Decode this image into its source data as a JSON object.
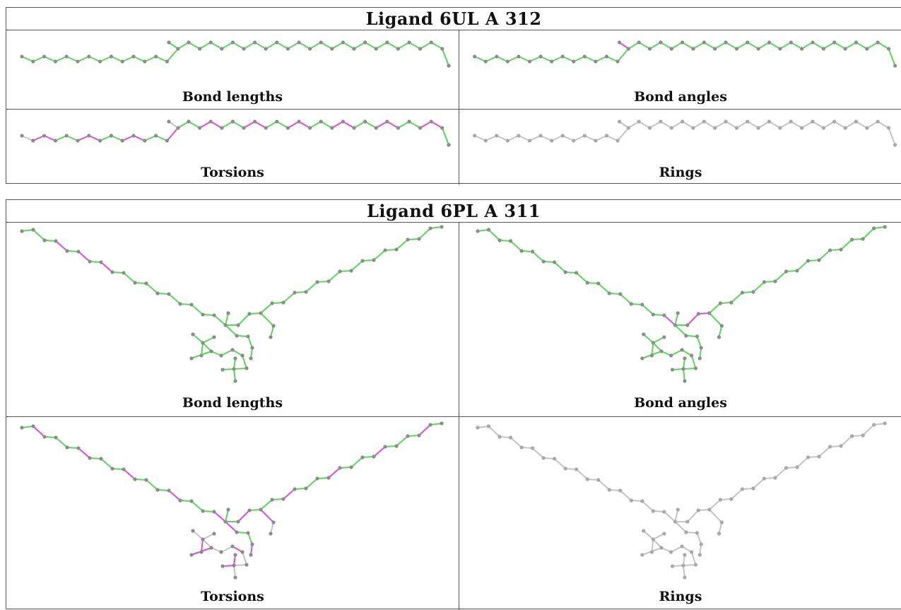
{
  "colors": {
    "ok_bond": "#5bd65b",
    "outlier_bond": "#dd4ddd",
    "neutral_bond": "#c4c4c4",
    "atom": "#8c8c8c",
    "atom_light": "#a8a8a8",
    "border": "#555555"
  },
  "ligands": [
    {
      "title": "Ligand 6UL A 312",
      "panels": [
        {
          "caption": "Bond lengths",
          "scheme": "bond_lengths"
        },
        {
          "caption": "Bond angles",
          "scheme": "bond_angles"
        },
        {
          "caption": "Torsions",
          "scheme": "torsions"
        },
        {
          "caption": "Rings",
          "scheme": "rings"
        }
      ]
    },
    {
      "title": "Ligand 6PL A 311",
      "panels": [
        {
          "caption": "Bond lengths",
          "scheme": "bond_lengths"
        },
        {
          "caption": "Bond angles",
          "scheme": "bond_angles"
        },
        {
          "caption": "Torsions",
          "scheme": "torsions"
        },
        {
          "caption": "Rings",
          "scheme": "rings"
        }
      ]
    }
  ]
}
